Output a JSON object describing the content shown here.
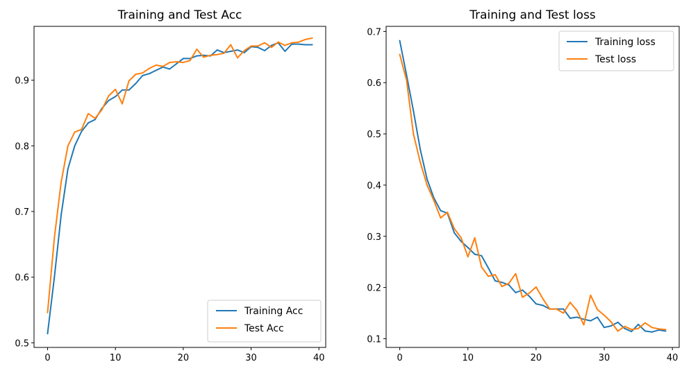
{
  "colors": {
    "training": "#1f77b4",
    "test": "#ff7f0e"
  },
  "chart_data": [
    {
      "type": "line",
      "title": "Training and Test Acc",
      "xlabel": "",
      "ylabel": "",
      "xlim": [
        -2,
        41
      ],
      "ylim": [
        0.493,
        0.982
      ],
      "xticks": [
        0,
        10,
        20,
        30,
        40
      ],
      "yticks": [
        0.5,
        0.6,
        0.7,
        0.8,
        0.9
      ],
      "xtick_labels": [
        "0",
        "10",
        "20",
        "30",
        "40"
      ],
      "ytick_labels": [
        "0.5",
        "0.6",
        "0.7",
        "0.8",
        "0.9"
      ],
      "legend_position": "bottom-right",
      "x": [
        0,
        1,
        2,
        3,
        4,
        5,
        6,
        7,
        8,
        9,
        10,
        11,
        12,
        13,
        14,
        15,
        16,
        17,
        18,
        19,
        20,
        21,
        22,
        23,
        24,
        25,
        26,
        27,
        28,
        29,
        30,
        31,
        32,
        33,
        34,
        35,
        36,
        37,
        38,
        39
      ],
      "series": [
        {
          "name": "Training Acc",
          "color_key": "training",
          "values": [
            0.514,
            0.6,
            0.695,
            0.765,
            0.8,
            0.822,
            0.835,
            0.84,
            0.857,
            0.869,
            0.875,
            0.885,
            0.885,
            0.895,
            0.907,
            0.91,
            0.915,
            0.92,
            0.917,
            0.925,
            0.933,
            0.933,
            0.937,
            0.938,
            0.937,
            0.946,
            0.942,
            0.944,
            0.946,
            0.942,
            0.951,
            0.95,
            0.945,
            0.953,
            0.957,
            0.944,
            0.955,
            0.955,
            0.954,
            0.954
          ]
        },
        {
          "name": "Test Acc",
          "color_key": "test",
          "values": [
            0.546,
            0.66,
            0.745,
            0.8,
            0.821,
            0.825,
            0.849,
            0.842,
            0.855,
            0.876,
            0.886,
            0.864,
            0.899,
            0.909,
            0.911,
            0.918,
            0.923,
            0.921,
            0.927,
            0.928,
            0.927,
            0.93,
            0.947,
            0.935,
            0.938,
            0.939,
            0.941,
            0.954,
            0.934,
            0.945,
            0.952,
            0.952,
            0.957,
            0.95,
            0.958,
            0.953,
            0.957,
            0.958,
            0.962,
            0.964
          ]
        }
      ]
    },
    {
      "type": "line",
      "title": "Training and Test loss",
      "xlabel": "",
      "ylabel": "",
      "xlim": [
        -2,
        41
      ],
      "ylim": [
        0.083,
        0.71
      ],
      "xticks": [
        0,
        10,
        20,
        30,
        40
      ],
      "yticks": [
        0.1,
        0.2,
        0.3,
        0.4,
        0.5,
        0.6,
        0.7
      ],
      "xtick_labels": [
        "0",
        "10",
        "20",
        "30",
        "40"
      ],
      "ytick_labels": [
        "0.1",
        "0.2",
        "0.3",
        "0.4",
        "0.5",
        "0.6",
        "0.7"
      ],
      "legend_position": "top-right",
      "x": [
        0,
        1,
        2,
        3,
        4,
        5,
        6,
        7,
        8,
        9,
        10,
        11,
        12,
        13,
        14,
        15,
        16,
        17,
        18,
        19,
        20,
        21,
        22,
        23,
        24,
        25,
        26,
        27,
        28,
        29,
        30,
        31,
        32,
        33,
        34,
        35,
        36,
        37,
        38,
        39
      ],
      "series": [
        {
          "name": "Training loss",
          "color_key": "training",
          "values": [
            0.682,
            0.615,
            0.545,
            0.47,
            0.412,
            0.375,
            0.35,
            0.345,
            0.307,
            0.29,
            0.278,
            0.265,
            0.262,
            0.238,
            0.213,
            0.21,
            0.205,
            0.19,
            0.195,
            0.183,
            0.168,
            0.165,
            0.158,
            0.158,
            0.158,
            0.14,
            0.142,
            0.138,
            0.135,
            0.142,
            0.122,
            0.125,
            0.132,
            0.12,
            0.114,
            0.128,
            0.115,
            0.113,
            0.117,
            0.115
          ]
        },
        {
          "name": "Test loss",
          "color_key": "test",
          "values": [
            0.655,
            0.605,
            0.5,
            0.445,
            0.4,
            0.37,
            0.336,
            0.347,
            0.315,
            0.297,
            0.26,
            0.297,
            0.24,
            0.222,
            0.225,
            0.202,
            0.208,
            0.227,
            0.181,
            0.189,
            0.201,
            0.178,
            0.158,
            0.158,
            0.15,
            0.171,
            0.155,
            0.127,
            0.185,
            0.157,
            0.146,
            0.133,
            0.115,
            0.124,
            0.118,
            0.12,
            0.131,
            0.122,
            0.119,
            0.118
          ]
        }
      ]
    }
  ]
}
